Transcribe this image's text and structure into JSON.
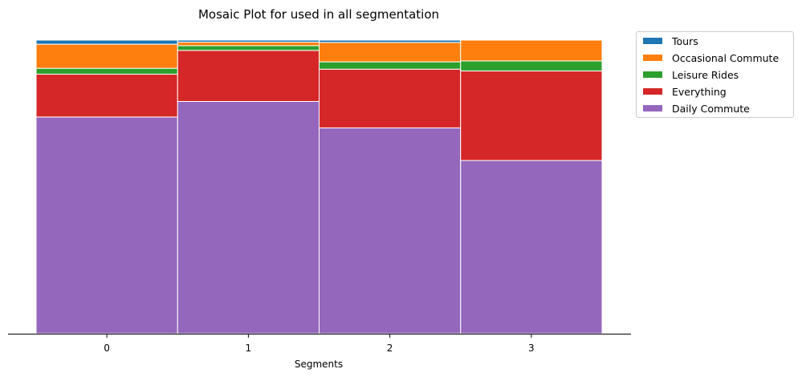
{
  "chart_data": {
    "type": "bar",
    "title": "Mosaic Plot for used in all segmentation",
    "xlabel": "Segments",
    "ylabel": "",
    "categories": [
      "0",
      "1",
      "2",
      "3"
    ],
    "ylim": [
      0,
      1
    ],
    "stacked": true,
    "normalized": true,
    "legend_placement": "outside upper right",
    "grid": false,
    "series": [
      {
        "name": "Daily Commute",
        "color": "#9467bd",
        "values": [
          0.738,
          0.791,
          0.701,
          0.59
        ]
      },
      {
        "name": "Everything",
        "color": "#d62728",
        "values": [
          0.146,
          0.174,
          0.2,
          0.305
        ]
      },
      {
        "name": "Leisure Rides",
        "color": "#2ca02c",
        "values": [
          0.02,
          0.016,
          0.025,
          0.034
        ]
      },
      {
        "name": "Occasional Commute",
        "color": "#ff7f0e",
        "values": [
          0.082,
          0.012,
          0.066,
          0.071
        ]
      },
      {
        "name": "Tours",
        "color": "#1f77b4",
        "values": [
          0.014,
          0.007,
          0.008,
          0.0
        ]
      }
    ],
    "legend_order": [
      "Tours",
      "Occasional Commute",
      "Leisure Rides",
      "Everything",
      "Daily Commute"
    ]
  }
}
